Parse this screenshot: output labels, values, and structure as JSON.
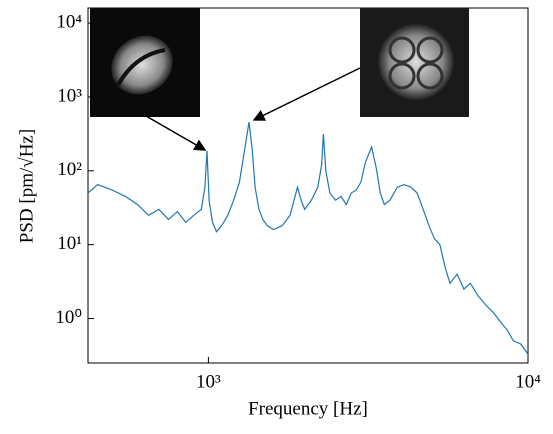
{
  "chart_data": {
    "type": "line",
    "xlabel": "Frequency [Hz]",
    "ylabel": "PSD [pm/√Hz]",
    "xscale": "log",
    "yscale": "log",
    "xlim": [
      420,
      10000
    ],
    "ylim": [
      0.25,
      16000
    ],
    "xticks": [
      {
        "value": 1000,
        "label": "10³"
      },
      {
        "value": 10000,
        "label": "10⁴"
      }
    ],
    "yticks": [
      {
        "value": 1,
        "label": "10⁰"
      },
      {
        "value": 10,
        "label": "10¹"
      },
      {
        "value": 100,
        "label": "10²"
      },
      {
        "value": 1000,
        "label": "10³"
      },
      {
        "value": 10000,
        "label": "10⁴"
      }
    ],
    "x": [
      420,
      450,
      500,
      550,
      600,
      650,
      700,
      750,
      800,
      850,
      900,
      950,
      975,
      990,
      1005,
      1030,
      1060,
      1100,
      1150,
      1200,
      1250,
      1300,
      1340,
      1370,
      1400,
      1440,
      1480,
      1530,
      1600,
      1700,
      1800,
      1900,
      1950,
      2000,
      2100,
      2200,
      2260,
      2290,
      2330,
      2400,
      2500,
      2600,
      2700,
      2800,
      2900,
      3000,
      3100,
      3240,
      3350,
      3450,
      3550,
      3700,
      3900,
      4100,
      4300,
      4500,
      4700,
      4900,
      5100,
      5300,
      5500,
      5700,
      6000,
      6300,
      6600,
      7000,
      7400,
      7800,
      8200,
      8600,
      9000,
      9500,
      10000
    ],
    "series": [
      {
        "name": "PSD",
        "color": "#1f77b4",
        "values": [
          50,
          65,
          55,
          45,
          35,
          25,
          30,
          22,
          28,
          20,
          25,
          30,
          60,
          186,
          40,
          20,
          15,
          18,
          25,
          40,
          70,
          200,
          458,
          200,
          60,
          30,
          22,
          18,
          16,
          18,
          25,
          60,
          40,
          30,
          40,
          60,
          120,
          316,
          100,
          50,
          40,
          45,
          35,
          50,
          55,
          70,
          130,
          210,
          110,
          50,
          35,
          40,
          60,
          65,
          60,
          50,
          30,
          18,
          12,
          10,
          5,
          3,
          4,
          2.5,
          3,
          2,
          1.5,
          1.2,
          0.9,
          0.7,
          0.5,
          0.45,
          0.33
        ]
      }
    ]
  }
}
